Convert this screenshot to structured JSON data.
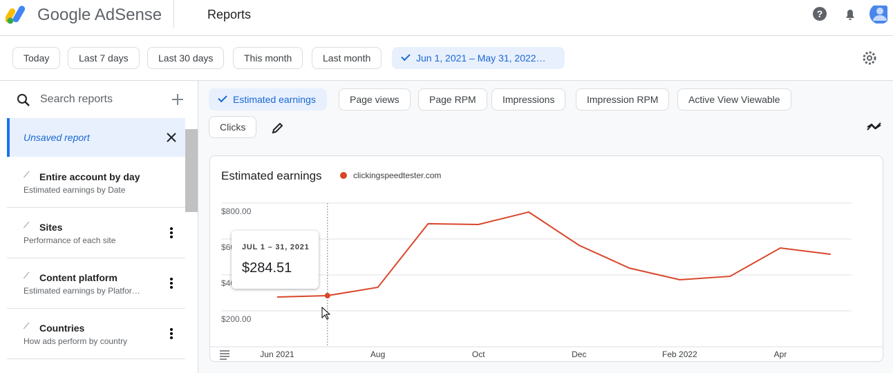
{
  "header": {
    "product": "Google AdSense",
    "page": "Reports"
  },
  "date_filters": {
    "options": [
      "Today",
      "Last 7 days",
      "Last 30 days",
      "This month",
      "Last month"
    ],
    "selected": "Jun 1, 2021 – May 31, 2022…"
  },
  "sidebar": {
    "search_placeholder": "Search reports",
    "current": "Unsaved report",
    "reports": [
      {
        "title": "Entire account by day",
        "subtitle": "Estimated earnings by Date"
      },
      {
        "title": "Sites",
        "subtitle": "Performance of each site"
      },
      {
        "title": "Content platform",
        "subtitle": "Estimated earnings by Platfor…"
      },
      {
        "title": "Countries",
        "subtitle": "How ads perform by country"
      }
    ]
  },
  "metrics": {
    "selected": "Estimated earnings",
    "options": [
      "Page views",
      "Page RPM",
      "Impressions",
      "Impression RPM",
      "Active View Viewable",
      "Clicks"
    ]
  },
  "chart_data": {
    "type": "line",
    "title": "Estimated earnings",
    "categories": [
      "Jun 2021",
      null,
      "Aug",
      null,
      "Oct",
      null,
      "Dec",
      null,
      "Feb 2022",
      null,
      "Apr",
      null
    ],
    "series": [
      {
        "name": "clickingspeedtester.com",
        "color": "#d9462b",
        "values": [
          277,
          284.51,
          331,
          685,
          681,
          750,
          565,
          438,
          373,
          392,
          550,
          515
        ]
      }
    ],
    "ylim": [
      0,
      800
    ],
    "yticks": [
      {
        "value": 200,
        "label": "$200.00"
      },
      {
        "value": 400,
        "label": "$400.00"
      },
      {
        "value": 600,
        "label": "$600.00"
      },
      {
        "value": 800,
        "label": "$800.00"
      }
    ],
    "grid": true,
    "tooltip": {
      "date": "JUL 1 – 31, 2021",
      "value_label": "$284.51"
    }
  }
}
